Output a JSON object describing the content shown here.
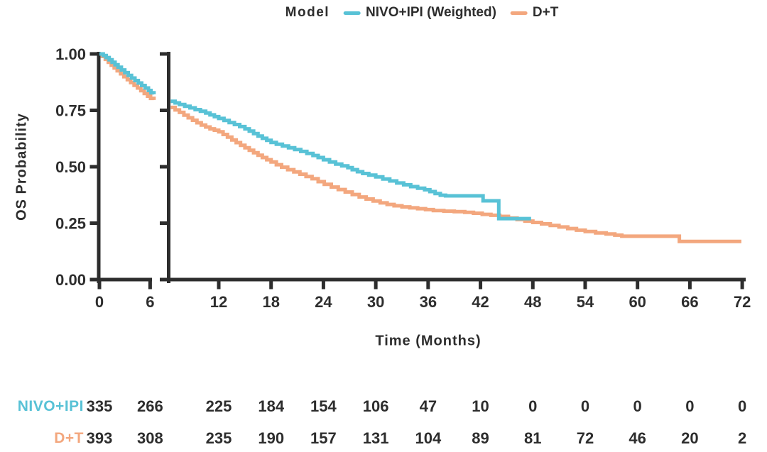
{
  "chart_data": {
    "type": "line",
    "subtype": "kaplan-meier-step",
    "x_label": "Time (Months)",
    "y_label": "OS Probability",
    "axis_color": "#2d2d2d",
    "background": "#ffffff",
    "grid": false,
    "axis_break": {
      "left_panel_months": [
        0,
        6.45
      ],
      "right_panel_months": [
        6.5,
        72
      ]
    },
    "xlim": [
      0,
      72
    ],
    "ylim": [
      0.0,
      1.0
    ],
    "y_ticks": [
      {
        "value": 0.0,
        "label": "0.00"
      },
      {
        "value": 0.25,
        "label": "0.25"
      },
      {
        "value": 0.5,
        "label": "0.50"
      },
      {
        "value": 0.75,
        "label": "0.75"
      },
      {
        "value": 1.0,
        "label": "1.00"
      }
    ],
    "x_ticks_left": [
      0,
      6
    ],
    "x_ticks_right": [
      12,
      18,
      24,
      30,
      36,
      42,
      48,
      54,
      60,
      66,
      72
    ],
    "legend": {
      "title": "Model",
      "position": "top",
      "items": [
        {
          "label": "NIVO+IPI (Weighted)",
          "color": "#58C2D6"
        },
        {
          "label": "D+T",
          "color": "#F3A77E"
        }
      ]
    },
    "series": [
      {
        "name": "NIVO+IPI (Weighted)",
        "color": "#58C2D6",
        "segments": [
          {
            "panel": "left",
            "points": [
              [
                0,
                1
              ],
              [
                0.45,
                0.993
              ],
              [
                0.8,
                0.984
              ],
              [
                1.15,
                0.974
              ],
              [
                1.5,
                0.963
              ],
              [
                1.85,
                0.952
              ],
              [
                2.2,
                0.941
              ],
              [
                2.6,
                0.929
              ],
              [
                3,
                0.917
              ],
              [
                3.4,
                0.905
              ],
              [
                3.8,
                0.893
              ],
              [
                4.2,
                0.882
              ],
              [
                4.6,
                0.871
              ],
              [
                5,
                0.86
              ],
              [
                5.4,
                0.849
              ],
              [
                5.8,
                0.838
              ],
              [
                6.1,
                0.828
              ],
              [
                6.45,
                0.821
              ]
            ]
          },
          {
            "panel": "right",
            "points": [
              [
                6.5,
                0.79
              ],
              [
                7,
                0.783
              ],
              [
                7.5,
                0.776
              ],
              [
                8.1,
                0.768
              ],
              [
                8.7,
                0.761
              ],
              [
                9.3,
                0.753
              ],
              [
                9.9,
                0.746
              ],
              [
                10.5,
                0.738
              ],
              [
                11,
                0.73
              ],
              [
                11.5,
                0.722
              ],
              [
                12,
                0.714
              ],
              [
                12.6,
                0.705
              ],
              [
                13.2,
                0.696
              ],
              [
                13.8,
                0.687
              ],
              [
                14.4,
                0.678
              ],
              [
                15,
                0.668
              ],
              [
                15.5,
                0.658
              ],
              [
                16,
                0.647
              ],
              [
                16.5,
                0.636
              ],
              [
                17,
                0.626
              ],
              [
                17.5,
                0.617
              ],
              [
                18,
                0.608
              ],
              [
                18.6,
                0.6
              ],
              [
                19.3,
                0.592
              ],
              [
                20,
                0.584
              ],
              [
                20.7,
                0.576
              ],
              [
                21.4,
                0.568
              ],
              [
                22.1,
                0.559
              ],
              [
                22.8,
                0.55
              ],
              [
                23.4,
                0.541
              ],
              [
                24,
                0.531
              ],
              [
                24.7,
                0.521
              ],
              [
                25.4,
                0.512
              ],
              [
                26.1,
                0.504
              ],
              [
                26.8,
                0.496
              ],
              [
                27.3,
                0.487
              ],
              [
                27.9,
                0.478
              ],
              [
                28.5,
                0.47
              ],
              [
                29.2,
                0.463
              ],
              [
                30,
                0.455
              ],
              [
                30.8,
                0.446
              ],
              [
                31.6,
                0.437
              ],
              [
                32.4,
                0.428
              ],
              [
                33.2,
                0.42
              ],
              [
                34,
                0.412
              ],
              [
                34.8,
                0.405
              ],
              [
                35.6,
                0.398
              ],
              [
                36.2,
                0.39
              ],
              [
                36.8,
                0.381
              ],
              [
                37.4,
                0.374
              ],
              [
                38,
                0.371
              ],
              [
                42.3,
                0.349
              ],
              [
                44.1,
                0.27
              ],
              [
                47.8,
                0.27
              ]
            ]
          }
        ]
      },
      {
        "name": "D+T",
        "color": "#F3A77E",
        "segments": [
          {
            "panel": "left",
            "points": [
              [
                0,
                1
              ],
              [
                0.35,
                0.989
              ],
              [
                0.7,
                0.976
              ],
              [
                1.05,
                0.963
              ],
              [
                1.4,
                0.95
              ],
              [
                1.75,
                0.938
              ],
              [
                2.1,
                0.925
              ],
              [
                2.5,
                0.912
              ],
              [
                2.9,
                0.899
              ],
              [
                3.3,
                0.886
              ],
              [
                3.7,
                0.873
              ],
              [
                4.1,
                0.861
              ],
              [
                4.5,
                0.849
              ],
              [
                4.9,
                0.837
              ],
              [
                5.3,
                0.825
              ],
              [
                5.7,
                0.813
              ],
              [
                6.05,
                0.803
              ],
              [
                6.45,
                0.796
              ]
            ]
          },
          {
            "panel": "right",
            "points": [
              [
                6.5,
                0.763
              ],
              [
                7,
                0.752
              ],
              [
                7.5,
                0.741
              ],
              [
                8,
                0.729
              ],
              [
                8.5,
                0.717
              ],
              [
                9,
                0.706
              ],
              [
                9.5,
                0.695
              ],
              [
                10,
                0.685
              ],
              [
                10.5,
                0.676
              ],
              [
                11,
                0.668
              ],
              [
                11.5,
                0.662
              ],
              [
                12,
                0.655
              ],
              [
                12.5,
                0.643
              ],
              [
                13,
                0.631
              ],
              [
                13.5,
                0.619
              ],
              [
                14,
                0.607
              ],
              [
                14.5,
                0.595
              ],
              [
                15,
                0.584
              ],
              [
                15.5,
                0.573
              ],
              [
                16,
                0.562
              ],
              [
                16.5,
                0.551
              ],
              [
                17,
                0.541
              ],
              [
                17.5,
                0.531
              ],
              [
                18,
                0.521
              ],
              [
                18.6,
                0.509
              ],
              [
                19.2,
                0.498
              ],
              [
                19.9,
                0.487
              ],
              [
                20.6,
                0.477
              ],
              [
                21.3,
                0.467
              ],
              [
                22,
                0.457
              ],
              [
                22.7,
                0.447
              ],
              [
                23.4,
                0.434
              ],
              [
                24.1,
                0.422
              ],
              [
                24.9,
                0.41
              ],
              [
                25.7,
                0.399
              ],
              [
                26.5,
                0.388
              ],
              [
                27.3,
                0.377
              ],
              [
                28.1,
                0.366
              ],
              [
                28.9,
                0.357
              ],
              [
                29.7,
                0.348
              ],
              [
                30.5,
                0.34
              ],
              [
                31.3,
                0.333
              ],
              [
                32.1,
                0.327
              ],
              [
                33,
                0.322
              ],
              [
                33.9,
                0.318
              ],
              [
                34.8,
                0.314
              ],
              [
                35.7,
                0.31
              ],
              [
                36.6,
                0.306
              ],
              [
                37.8,
                0.303
              ],
              [
                39,
                0.301
              ],
              [
                40.2,
                0.298
              ],
              [
                41.2,
                0.294
              ],
              [
                42.2,
                0.289
              ],
              [
                43.2,
                0.285
              ],
              [
                44.2,
                0.28
              ],
              [
                45.2,
                0.273
              ],
              [
                46.2,
                0.266
              ],
              [
                47.1,
                0.259
              ],
              [
                48,
                0.253
              ],
              [
                49,
                0.247
              ],
              [
                50,
                0.24
              ],
              [
                51,
                0.233
              ],
              [
                52,
                0.226
              ],
              [
                53,
                0.219
              ],
              [
                54,
                0.213
              ],
              [
                55.2,
                0.207
              ],
              [
                56.4,
                0.202
              ],
              [
                57.4,
                0.197
              ],
              [
                58.2,
                0.192
              ],
              [
                64.8,
                0.169
              ],
              [
                71.9,
                0.169
              ]
            ]
          }
        ]
      }
    ]
  },
  "risk_table": {
    "columns_months": [
      0,
      6,
      12,
      18,
      24,
      30,
      36,
      42,
      48,
      54,
      60,
      66,
      72
    ],
    "rows": [
      {
        "label": "NIVO+IPI",
        "color": "#58C2D6",
        "values": [
          335,
          266,
          225,
          184,
          154,
          106,
          47,
          10,
          0,
          0,
          0,
          0,
          0
        ]
      },
      {
        "label": "D+T",
        "color": "#F3A77E",
        "values": [
          393,
          308,
          235,
          190,
          157,
          131,
          104,
          89,
          81,
          72,
          46,
          20,
          2
        ]
      }
    ]
  }
}
